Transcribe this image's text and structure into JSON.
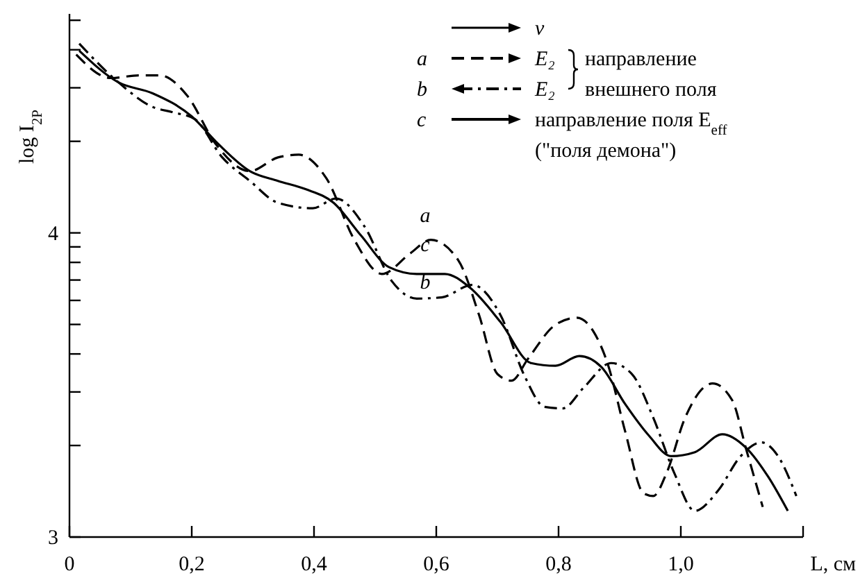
{
  "chart_data": {
    "type": "line",
    "ylabel": "log I$_{2P}$",
    "xlabel": "L, см",
    "xlim": [
      0,
      1.2
    ],
    "ylim": [
      3,
      4.72
    ],
    "xticks": [
      0,
      {
        "value": 0.2,
        "label": "0,2"
      },
      {
        "value": 0.4,
        "label": "0,4"
      },
      {
        "value": 0.6,
        "label": "0,6"
      },
      {
        "value": 0.8,
        "label": "0,8"
      },
      {
        "value": 1.0,
        "label": "1,0"
      },
      {
        "value": 1.2,
        "label": null
      }
    ],
    "yticks": [
      3,
      {
        "value": 3.301,
        "label": null
      },
      {
        "value": 3.477,
        "label": null
      },
      {
        "value": 3.602,
        "label": null
      },
      {
        "value": 3.699,
        "label": null
      },
      {
        "value": 3.778,
        "label": null
      },
      {
        "value": 3.845,
        "label": null
      },
      {
        "value": 3.903,
        "label": null
      },
      {
        "value": 3.954,
        "label": null
      },
      4,
      {
        "value": 4.301,
        "label": null
      },
      {
        "value": 4.477,
        "label": null
      },
      {
        "value": 4.602,
        "label": null
      },
      {
        "value": 4.699,
        "label": null
      }
    ],
    "legend": "top right",
    "grid": false,
    "marker": "none",
    "annotations": [
      "v",
      "E₂",
      "E₂",
      "направление",
      "внешнего поля",
      "направление поля E$_{eff}$",
      "(\"поля демона\")",
      "a",
      "c",
      "b"
    ],
    "series": [
      {
        "name": "a",
        "color": "#000000",
        "line_style": "dashed",
        "x": [
          0.011,
          0.068,
          0.114,
          0.148,
          0.193,
          0.239,
          0.295,
          0.341,
          0.375,
          0.42,
          0.466,
          0.511,
          0.557,
          0.591,
          0.636,
          0.67,
          0.7,
          0.723,
          0.75,
          0.795,
          0.83,
          0.857,
          0.88,
          0.909,
          0.939,
          0.955,
          0.977,
          1.007,
          1.052,
          1.084,
          1.107,
          1.134
        ],
        "values": [
          4.586,
          4.509,
          4.518,
          4.518,
          4.45,
          4.293,
          4.203,
          4.248,
          4.257,
          4.18,
          3.977,
          3.865,
          3.932,
          3.977,
          3.91,
          3.73,
          3.536,
          3.514,
          3.586,
          3.698,
          3.721,
          3.676,
          3.572,
          3.347,
          3.144,
          3.135,
          3.212,
          3.392,
          3.505,
          3.45,
          3.288,
          3.099
        ]
      },
      {
        "name": "b",
        "color": "#000000",
        "line_style": "dotted",
        "x": [
          0.016,
          0.08,
          0.136,
          0.17,
          0.205,
          0.25,
          0.295,
          0.341,
          0.398,
          0.436,
          0.482,
          0.527,
          0.568,
          0.609,
          0.659,
          0.705,
          0.745,
          0.777,
          0.807,
          0.841,
          0.886,
          0.92,
          0.955,
          0.989,
          1.023,
          1.061,
          1.098,
          1.132,
          1.159,
          1.189
        ],
        "values": [
          4.622,
          4.495,
          4.414,
          4.396,
          4.374,
          4.248,
          4.171,
          4.099,
          4.081,
          4.113,
          4.023,
          3.842,
          3.784,
          3.788,
          3.829,
          3.73,
          3.527,
          3.428,
          3.423,
          3.491,
          3.572,
          3.536,
          3.392,
          3.212,
          3.086,
          3.153,
          3.266,
          3.311,
          3.266,
          3.135
        ]
      },
      {
        "name": "c",
        "color": "#000000",
        "line_style": "solid",
        "x": [
          0.016,
          0.08,
          0.136,
          0.2,
          0.243,
          0.295,
          0.341,
          0.386,
          0.432,
          0.477,
          0.523,
          0.568,
          0.614,
          0.655,
          0.705,
          0.755,
          0.795,
          0.834,
          0.87,
          0.909,
          0.948,
          0.984,
          1.023,
          1.068,
          1.107,
          1.143,
          1.175
        ],
        "values": [
          4.599,
          4.495,
          4.459,
          4.383,
          4.293,
          4.203,
          4.171,
          4.144,
          4.099,
          3.991,
          3.887,
          3.865,
          3.865,
          3.82,
          3.707,
          3.572,
          3.563,
          3.595,
          3.559,
          3.437,
          3.333,
          3.266,
          3.279,
          3.338,
          3.293,
          3.198,
          3.086
        ]
      }
    ]
  }
}
